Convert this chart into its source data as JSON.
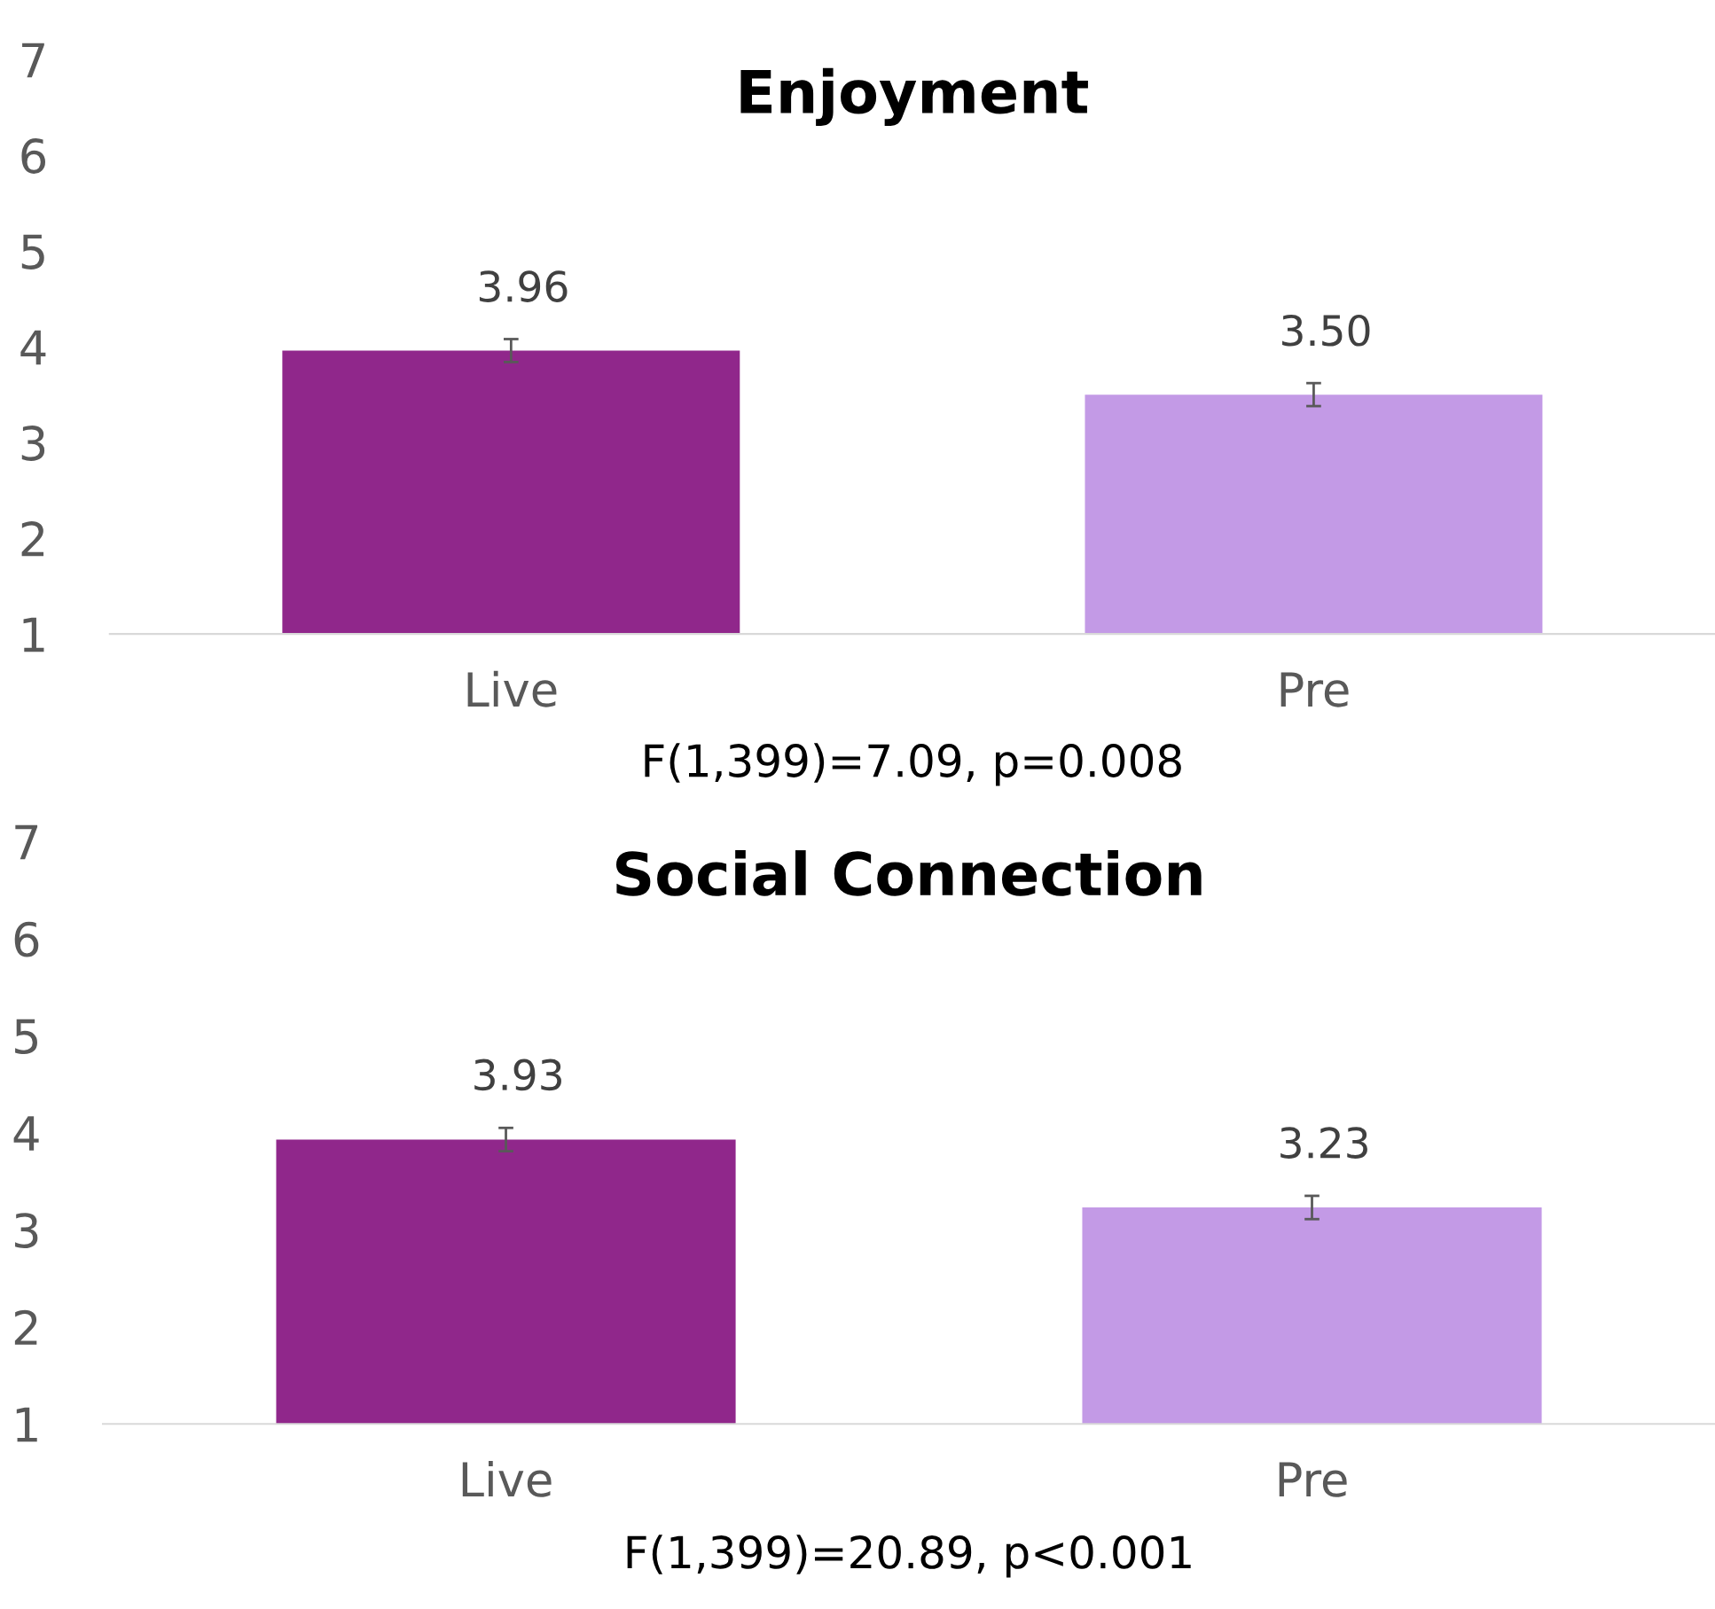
{
  "chart_data": [
    {
      "type": "bar",
      "title": "Enjoyment",
      "categories": [
        "Live",
        "Pre"
      ],
      "values": [
        3.96,
        3.5
      ],
      "colors": [
        "#90278b",
        "#c39ae6"
      ],
      "errors": [
        0.12,
        0.12
      ],
      "value_labels": [
        "3.96",
        "3.50"
      ],
      "ylim": [
        1,
        7
      ],
      "yticks": [
        1,
        2,
        3,
        4,
        5,
        6,
        7
      ],
      "grid": false,
      "annotations": [
        "F(1,399)=7.09, p=0.008"
      ]
    },
    {
      "type": "bar",
      "title": "Social Connection",
      "categories": [
        "Live",
        "Pre"
      ],
      "values": [
        3.93,
        3.23
      ],
      "colors": [
        "#90278b",
        "#c39ae6"
      ],
      "errors": [
        0.12,
        0.12
      ],
      "value_labels": [
        "3.93",
        "3.23"
      ],
      "ylim": [
        1,
        7
      ],
      "yticks": [
        1,
        2,
        3,
        4,
        5,
        6,
        7
      ],
      "grid": false,
      "annotations": [
        "F(1,399)=20.89, p<0.001"
      ]
    }
  ]
}
